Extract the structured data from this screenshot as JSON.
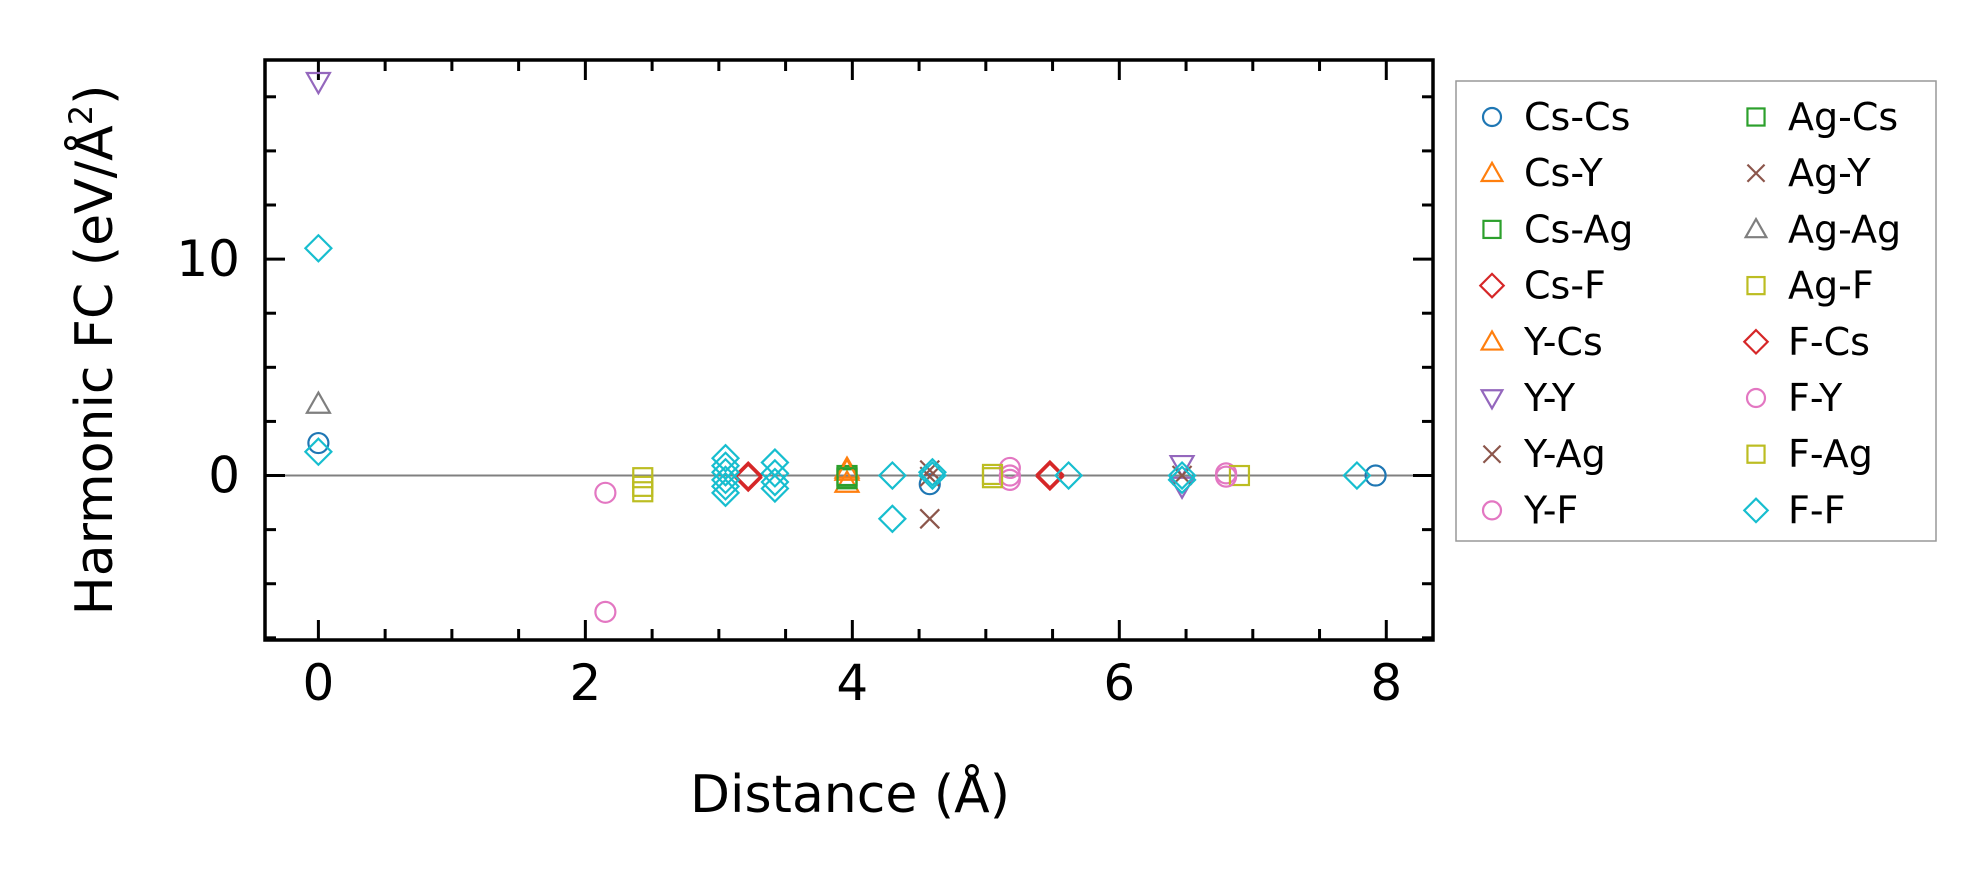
{
  "chart_data": {
    "type": "scatter",
    "xlabel": "Distance (Å)",
    "ylabel_main": "Harmonic FC (eV/Å",
    "ylabel_sup": "2",
    "ylabel_close": ")",
    "xlim": [
      -0.4,
      8.35
    ],
    "ylim": [
      -7.6,
      19.2
    ],
    "xticks": [
      0,
      2,
      4,
      6,
      8
    ],
    "xtick_labels": [
      "0",
      "2",
      "4",
      "6",
      "8"
    ],
    "yticks": [
      0,
      10
    ],
    "ytick_labels": [
      "0",
      "10"
    ],
    "zero_line": true,
    "grid": false,
    "legend_placement": "right, outside plot, two columns",
    "series": [
      {
        "name": "Cs-Cs",
        "marker": "circle",
        "color": "#1f77b4",
        "points": [
          [
            0,
            1.5
          ],
          [
            4.58,
            -0.4
          ],
          [
            7.92,
            0.0
          ]
        ]
      },
      {
        "name": "Cs-Y",
        "marker": "triangle-up",
        "color": "#ff7f0e",
        "points": [
          [
            3.96,
            -0.35
          ],
          [
            3.96,
            0.3
          ]
        ]
      },
      {
        "name": "Cs-Ag",
        "marker": "square",
        "color": "#2ca02c",
        "points": [
          [
            3.96,
            0.0
          ],
          [
            3.96,
            -0.15
          ]
        ]
      },
      {
        "name": "Cs-F",
        "marker": "diamond",
        "color": "#d62728",
        "points": [
          [
            3.22,
            0.0
          ],
          [
            5.48,
            0.05
          ]
        ]
      },
      {
        "name": "Y-Cs",
        "marker": "triangle-up",
        "color": "#ff7f0e",
        "points": [
          [
            3.96,
            0.2
          ]
        ]
      },
      {
        "name": "Y-Y",
        "marker": "triangle-down",
        "color": "#9467bd",
        "points": [
          [
            0,
            18.2
          ],
          [
            6.47,
            0.5
          ],
          [
            6.47,
            -0.5
          ]
        ]
      },
      {
        "name": "Y-Ag",
        "marker": "x",
        "color": "#8c564b",
        "points": [
          [
            4.58,
            -2.0
          ],
          [
            4.58,
            0.25
          ],
          [
            6.47,
            0.0
          ]
        ]
      },
      {
        "name": "Y-F",
        "marker": "circle",
        "color": "#e377c2",
        "points": [
          [
            2.15,
            -6.3
          ],
          [
            2.15,
            -0.8
          ],
          [
            5.18,
            0.35
          ],
          [
            5.18,
            0.0
          ],
          [
            6.8,
            0.1
          ]
        ]
      },
      {
        "name": "Ag-Cs",
        "marker": "square",
        "color": "#2ca02c",
        "points": [
          [
            3.96,
            -0.1
          ]
        ]
      },
      {
        "name": "Ag-Y",
        "marker": "x",
        "color": "#8c564b",
        "points": [
          [
            4.58,
            -0.05
          ]
        ]
      },
      {
        "name": "Ag-Ag",
        "marker": "triangle-up",
        "color": "#7f7f7f",
        "points": [
          [
            0,
            3.3
          ]
        ]
      },
      {
        "name": "Ag-F",
        "marker": "square",
        "color": "#bcbd22",
        "points": [
          [
            2.43,
            -0.1
          ],
          [
            2.43,
            -0.75
          ],
          [
            5.05,
            0.05
          ],
          [
            6.9,
            0.0
          ]
        ]
      },
      {
        "name": "F-Cs",
        "marker": "diamond",
        "color": "#d62728",
        "points": [
          [
            3.22,
            -0.1
          ],
          [
            5.48,
            -0.05
          ]
        ]
      },
      {
        "name": "F-Y",
        "marker": "circle",
        "color": "#e377c2",
        "points": [
          [
            5.18,
            -0.2
          ],
          [
            6.8,
            -0.05
          ]
        ]
      },
      {
        "name": "F-Ag",
        "marker": "square",
        "color": "#bcbd22",
        "points": [
          [
            2.43,
            -0.5
          ],
          [
            5.05,
            -0.1
          ]
        ]
      },
      {
        "name": "F-F",
        "marker": "diamond",
        "color": "#17becf",
        "points": [
          [
            0,
            10.5
          ],
          [
            0,
            1.1
          ],
          [
            3.05,
            0.8
          ],
          [
            3.05,
            0.45
          ],
          [
            3.05,
            0.15
          ],
          [
            3.05,
            -0.2
          ],
          [
            3.05,
            -0.5
          ],
          [
            3.05,
            -0.8
          ],
          [
            3.42,
            0.6
          ],
          [
            3.42,
            0.1
          ],
          [
            3.42,
            -0.3
          ],
          [
            3.42,
            -0.6
          ],
          [
            4.3,
            -2.0
          ],
          [
            4.3,
            0.0
          ],
          [
            4.6,
            0.15
          ],
          [
            4.6,
            0.0
          ],
          [
            5.62,
            0.0
          ],
          [
            6.47,
            0.0
          ],
          [
            6.47,
            -0.2
          ],
          [
            7.78,
            0.0
          ]
        ]
      }
    ]
  }
}
